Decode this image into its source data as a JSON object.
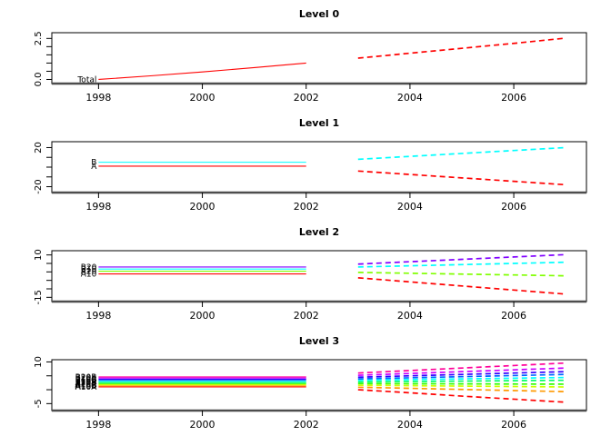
{
  "figure": {
    "background": "#ffffff",
    "x_history_years": [
      1998,
      1999,
      2000,
      2001,
      2002
    ],
    "x_forecast_years": [
      2003,
      2004,
      2005,
      2006,
      2007
    ],
    "xlim": [
      1997.1,
      2007.4
    ]
  },
  "chart_data": [
    {
      "type": "line",
      "title": "Level 0",
      "xticks": [
        1998,
        2000,
        2002,
        2004,
        2006
      ],
      "ylim": [
        -0.25,
        2.85
      ],
      "yticks": [
        0,
        0.5,
        1,
        1.5,
        2,
        2.5
      ],
      "ytick_labels": [
        "0.0",
        "",
        "",
        "",
        "",
        "2.5"
      ],
      "series": [
        {
          "name": "Total",
          "color": "#FF0000",
          "history": [
            0.0,
            0.22,
            0.46,
            0.72,
            1.0
          ],
          "forecast": [
            1.3,
            1.6,
            1.9,
            2.2,
            2.52
          ]
        }
      ]
    },
    {
      "type": "line",
      "title": "Level 1",
      "xticks": [
        1998,
        2000,
        2002,
        2004,
        2006
      ],
      "ylim": [
        -26,
        26
      ],
      "yticks": [
        -20,
        -10,
        0,
        10,
        20
      ],
      "ytick_labels": [
        "-20",
        "",
        "",
        "",
        "20"
      ],
      "series": [
        {
          "name": "A",
          "color": "#FF0000",
          "history": [
            1,
            1,
            1,
            1,
            1
          ],
          "forecast": [
            -4,
            -7.5,
            -11,
            -14.5,
            -18
          ]
        },
        {
          "name": "B",
          "color": "#00FFFF",
          "history": [
            5,
            5,
            5,
            5,
            5
          ],
          "forecast": [
            8,
            11,
            14,
            17,
            20
          ]
        }
      ]
    },
    {
      "type": "line",
      "title": "Level 2",
      "xticks": [
        1998,
        2000,
        2002,
        2004,
        2006
      ],
      "ylim": [
        -17.5,
        12.5
      ],
      "yticks": [
        -15,
        -10,
        -5,
        0,
        5,
        10
      ],
      "ytick_labels": [
        "-15",
        "",
        "",
        "",
        "",
        "10"
      ],
      "series": [
        {
          "name": "A10",
          "color": "#FF0000",
          "history": [
            -1.2,
            -1.2,
            -1.2,
            -1.2,
            -1.2
          ],
          "forecast": [
            -3.5,
            -5.9,
            -8.3,
            -10.7,
            -13.1
          ]
        },
        {
          "name": "A20",
          "color": "#80FF00",
          "history": [
            0.4,
            0.4,
            0.4,
            0.4,
            0.4
          ],
          "forecast": [
            -0.3,
            -0.8,
            -1.3,
            -1.8,
            -2.3
          ]
        },
        {
          "name": "B10",
          "color": "#00FFFF",
          "history": [
            1.7,
            1.7,
            1.7,
            1.7,
            1.7
          ],
          "forecast": [
            2.9,
            3.6,
            4.3,
            5.0,
            5.7
          ]
        },
        {
          "name": "B20",
          "color": "#8000FF",
          "history": [
            2.9,
            2.9,
            2.9,
            2.9,
            2.9
          ],
          "forecast": [
            4.6,
            6.0,
            7.4,
            8.8,
            10.2
          ]
        }
      ]
    },
    {
      "type": "line",
      "title": "Level 3",
      "xticks": [
        1998,
        2000,
        2002,
        2004,
        2006
      ],
      "ylim": [
        -7.5,
        10.8
      ],
      "yticks": [
        -5,
        0,
        5,
        10
      ],
      "ytick_labels": [
        "-5",
        "",
        "",
        "10"
      ],
      "series": [
        {
          "name": "A10A",
          "color": "#FF0000",
          "history": [
            1.0,
            1.0,
            1.0,
            1.0,
            1.0
          ],
          "forecast": [
            0.0,
            -1.1,
            -2.3,
            -3.4,
            -4.5
          ]
        },
        {
          "name": "A10B",
          "color": "#FF9900",
          "history": [
            1.4,
            1.4,
            1.4,
            1.4,
            1.4
          ],
          "forecast": [
            0.9,
            0.5,
            0.1,
            -0.3,
            -0.7
          ]
        },
        {
          "name": "A10C",
          "color": "#CCFF00",
          "history": [
            1.8,
            1.8,
            1.8,
            1.8,
            1.8
          ],
          "forecast": [
            1.6,
            1.45,
            1.3,
            1.15,
            1.0
          ]
        },
        {
          "name": "A20A",
          "color": "#33FF00",
          "history": [
            2.2,
            2.2,
            2.2,
            2.2,
            2.2
          ],
          "forecast": [
            2.2,
            2.15,
            2.1,
            2.05,
            2.0
          ]
        },
        {
          "name": "A20B",
          "color": "#00FF66",
          "history": [
            2.6,
            2.6,
            2.6,
            2.6,
            2.6
          ],
          "forecast": [
            2.8,
            2.95,
            3.1,
            3.25,
            3.4
          ]
        },
        {
          "name": "B10A",
          "color": "#00FFFF",
          "history": [
            3.0,
            3.0,
            3.0,
            3.0,
            3.0
          ],
          "forecast": [
            3.4,
            3.65,
            3.9,
            4.15,
            4.4
          ]
        },
        {
          "name": "B10B",
          "color": "#0066FF",
          "history": [
            3.4,
            3.4,
            3.4,
            3.4,
            3.4
          ],
          "forecast": [
            3.9,
            4.3,
            4.7,
            5.1,
            5.5
          ]
        },
        {
          "name": "B10C",
          "color": "#3300FF",
          "history": [
            3.8,
            3.8,
            3.8,
            3.8,
            3.8
          ],
          "forecast": [
            4.5,
            5.0,
            5.5,
            6.0,
            6.5
          ]
        },
        {
          "name": "B20A",
          "color": "#CC00FF",
          "history": [
            4.2,
            4.2,
            4.2,
            4.2,
            4.2
          ],
          "forecast": [
            5.2,
            5.85,
            6.5,
            7.15,
            7.8
          ]
        },
        {
          "name": "B20B",
          "color": "#FF0099",
          "history": [
            4.6,
            4.6,
            4.6,
            4.6,
            4.6
          ],
          "forecast": [
            6.0,
            6.9,
            7.8,
            8.7,
            9.6
          ]
        }
      ]
    }
  ]
}
